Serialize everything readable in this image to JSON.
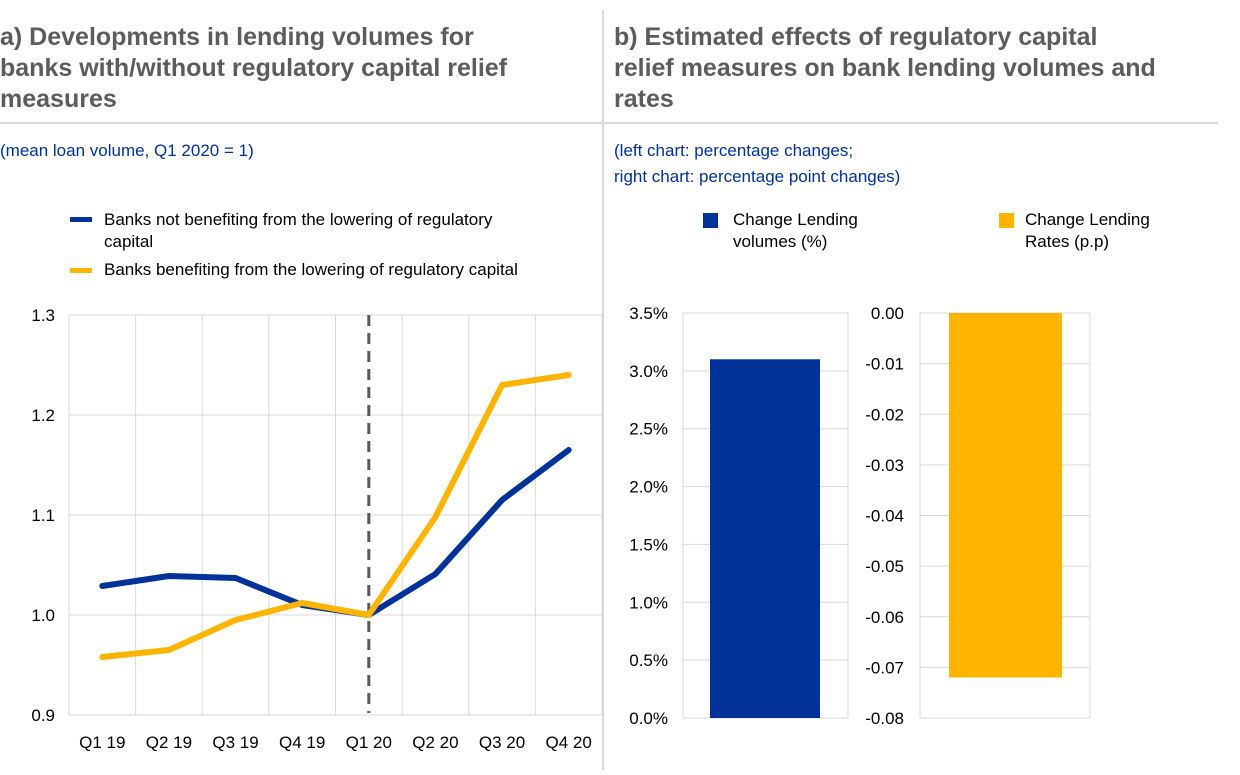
{
  "panel_a": {
    "title_lines": [
      "a) Developments in lending volumes for",
      "banks with/without regulatory capital relief",
      "measures"
    ],
    "subtitle": "(mean loan volume, Q1 2020 = 1)",
    "legend": [
      {
        "lines": [
          "Banks not benefiting from the lowering of regulatory",
          "capital"
        ],
        "color": "#003299"
      },
      {
        "lines": [
          "Banks benefiting from the lowering of regulatory capital"
        ],
        "color": "#FFB400"
      }
    ]
  },
  "panel_b": {
    "title_lines": [
      "b) Estimated effects of regulatory capital",
      "relief measures on bank lending volumes and",
      "rates"
    ],
    "subtitle_lines": [
      "(left chart: percentage changes;",
      "right chart: percentage point changes)"
    ],
    "legend": [
      {
        "lines": [
          "Change Lending",
          "volumes (%)"
        ],
        "color": "#003299"
      },
      {
        "lines": [
          "Change Lending",
          "Rates (p.p)"
        ],
        "color": "#FFB400"
      }
    ]
  },
  "chart_data": [
    {
      "type": "line",
      "title": "Developments in lending volumes for banks with/without regulatory capital relief measures",
      "categories": [
        "Q1 19",
        "Q2 19",
        "Q3 19",
        "Q4 19",
        "Q1 20",
        "Q2 20",
        "Q3 20",
        "Q4 20"
      ],
      "series": [
        {
          "name": "Banks not benefiting from the lowering of regulatory capital",
          "color": "#003299",
          "values": [
            1.029,
            1.039,
            1.037,
            1.01,
            1.0,
            1.041,
            1.115,
            1.165
          ]
        },
        {
          "name": "Banks benefiting from the lowering of regulatory capital",
          "color": "#FFB400",
          "values": [
            0.958,
            0.965,
            0.995,
            1.012,
            1.0,
            1.098,
            1.23,
            1.24
          ]
        }
      ],
      "ylim": [
        0.9,
        1.3
      ],
      "yticks": [
        0.9,
        1.0,
        1.1,
        1.2,
        1.3
      ],
      "ytick_labels": [
        "0.9",
        "1.0",
        "1.1",
        "1.2",
        "1.3"
      ],
      "vertical_marker": "Q1 20",
      "grid": true
    },
    {
      "type": "bar",
      "title": "Change Lending volumes (%)",
      "categories": [
        "Change Lending volumes (%)"
      ],
      "values": [
        3.1
      ],
      "color": "#003299",
      "ylim": [
        0,
        3.5
      ],
      "yticks": [
        0,
        0.5,
        1.0,
        1.5,
        2.0,
        2.5,
        3.0,
        3.5
      ],
      "ytick_labels": [
        "0.0%",
        "0.5%",
        "1.0%",
        "1.5%",
        "2.0%",
        "2.5%",
        "3.0%",
        "3.5%"
      ],
      "grid": true
    },
    {
      "type": "bar",
      "title": "Change Lending Rates (p.p)",
      "categories": [
        "Change Lending Rates (p.p)"
      ],
      "values": [
        -0.072
      ],
      "color": "#FFB400",
      "ylim": [
        -0.08,
        0
      ],
      "yticks": [
        -0.08,
        -0.07,
        -0.06,
        -0.05,
        -0.04,
        -0.03,
        -0.02,
        -0.01,
        0
      ],
      "ytick_labels": [
        "-0.08",
        "-0.07",
        "-0.06",
        "-0.05",
        "-0.04",
        "-0.03",
        "-0.02",
        "-0.01",
        "0.00"
      ],
      "grid": true
    }
  ]
}
